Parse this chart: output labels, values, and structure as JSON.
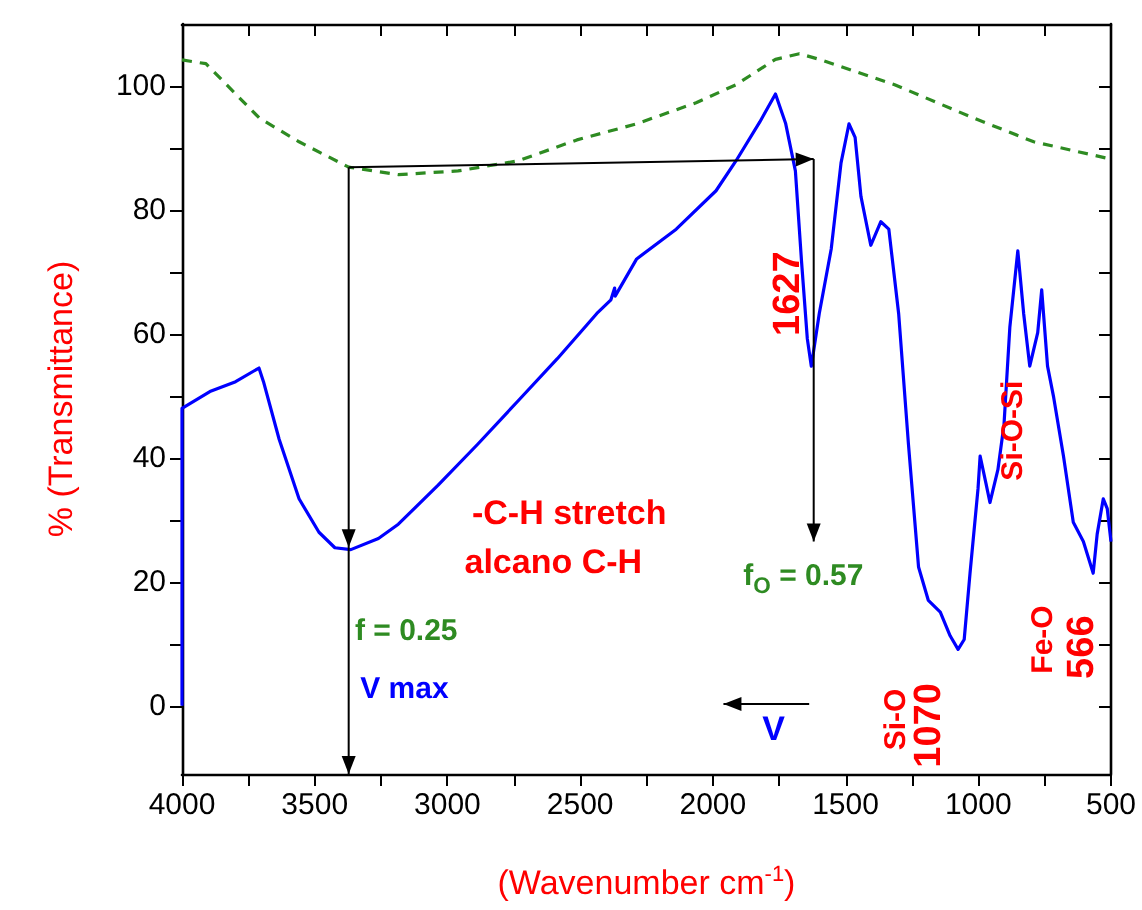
{
  "chart_data": {
    "type": "line",
    "xlabel": "(Wavenumber cm$^{-1}$)",
    "ylabel": "% (Transmittance)",
    "xlim": [
      4000,
      500
    ],
    "xticks": [
      4000,
      3500,
      3000,
      2500,
      2000,
      1500,
      1000,
      500
    ],
    "ylim": [
      -11,
      110
    ],
    "yticks": [
      0,
      20,
      40,
      60,
      80,
      100
    ],
    "grid": false,
    "marker": "none",
    "series": [
      {
        "color": "#0000ff",
        "line_style": "solid",
        "x": [
          4000,
          4000,
          3895,
          3798,
          3710,
          3693,
          3634,
          3559,
          3484,
          3424,
          3364,
          3260,
          3185,
          3035,
          2886,
          2736,
          2586,
          2437,
          2384,
          2370,
          2368,
          2287,
          2138,
          1988,
          1913,
          1823,
          1764,
          1726,
          1689,
          1666,
          1644,
          1629,
          1599,
          1554,
          1517,
          1487,
          1464,
          1442,
          1405,
          1367,
          1337,
          1300,
          1263,
          1225,
          1188,
          1143,
          1106,
          1076,
          1053,
          1031,
          1001,
          993,
          971,
          956,
          926,
          903,
          881,
          851,
          829,
          806,
          776,
          761,
          739,
          716,
          679,
          642,
          604,
          567,
          552,
          529,
          514,
          500
        ],
        "values": [
          0,
          48,
          50.7,
          52.3,
          54.5,
          52.3,
          43,
          33.4,
          28,
          25.5,
          25.2,
          27,
          29.3,
          35.6,
          42.2,
          49.1,
          56,
          63.3,
          65.5,
          67.4,
          66.1,
          72.1,
          76.9,
          83.1,
          87.9,
          94.2,
          98.7,
          94,
          86.3,
          71.8,
          59.2,
          54.8,
          63.3,
          73.7,
          87.6,
          93.9,
          91.7,
          82.2,
          74.3,
          78.1,
          76.9,
          63.3,
          42.2,
          22.4,
          17,
          15.1,
          11.3,
          9.1,
          10.7,
          21.4,
          35,
          40.3,
          35.9,
          32.8,
          38.1,
          45.4,
          61.1,
          73.4,
          63.3,
          54.8,
          60.2,
          67.1,
          54.8,
          49.8,
          40.3,
          29.6,
          26.5,
          21.4,
          27.7,
          33.4,
          31.8,
          26.5
        ]
      },
      {
        "color": "#2e8b22",
        "line_style": "dashed",
        "x": [
          4000,
          3910,
          3708,
          3559,
          3372,
          3185,
          2960,
          2736,
          2512,
          2287,
          2063,
          1913,
          1764,
          1674,
          1599,
          1315,
          1016,
          791,
          500
        ],
        "values": [
          104.2,
          103.6,
          94.8,
          91,
          86.9,
          85.7,
          86.3,
          87.9,
          91.3,
          93.9,
          97.3,
          100.2,
          104.3,
          105.2,
          104.3,
          100.2,
          94.8,
          91,
          88.2
        ]
      }
    ],
    "ref_lines": [
      {
        "axis": "x",
        "value": 3372,
        "color": "#000000"
      }
    ],
    "annotations": [
      "-C-H stretch",
      "alcano C-H",
      "f = 0.25",
      "V max",
      "f$_{O}$ = 0.57",
      "1627",
      "Si-O",
      {
        "text": "1070",
        "x": 1070,
        "y": 9.1
      },
      "Si-O-Si",
      {
        "text": "566",
        "x": 566,
        "y": 21.4
      },
      "Fe-O",
      "V"
    ]
  }
}
